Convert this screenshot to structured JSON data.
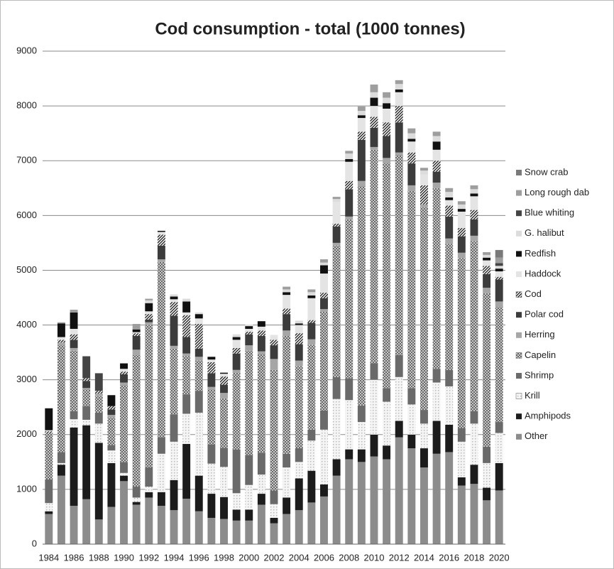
{
  "chart_data": {
    "type": "stacked_bar",
    "title": "Cod consumption - total (1000 tonnes)",
    "categories": [
      "1984",
      null,
      "1986",
      null,
      "1988",
      null,
      "1990",
      null,
      "1992",
      null,
      "1994",
      null,
      "1996",
      null,
      "1998",
      null,
      "2000",
      null,
      "2002",
      null,
      "2004",
      null,
      "2006",
      null,
      "2008",
      null,
      "2010",
      null,
      "2012",
      null,
      "2014",
      null,
      "2016",
      null,
      "2018",
      null,
      "2020"
    ],
    "ylim": [
      0,
      9000
    ],
    "yticks": [
      0,
      1000,
      2000,
      3000,
      4000,
      5000,
      6000,
      7000,
      8000,
      9000
    ],
    "grid": true,
    "legend": "right",
    "series": [
      {
        "name": "Other",
        "color": "#8c8c8c",
        "values": [
          550,
          1250,
          700,
          820,
          450,
          680,
          1150,
          720,
          850,
          700,
          620,
          830,
          600,
          480,
          460,
          430,
          430,
          720,
          380,
          550,
          620,
          760,
          870,
          1250,
          1550,
          1500,
          1600,
          1550,
          1950,
          1750,
          1400,
          1650,
          1680,
          1070,
          1100,
          800,
          980
        ]
      },
      {
        "name": "Amphipods",
        "color": "#1c1c1c",
        "values": [
          50,
          200,
          1430,
          1350,
          1400,
          800,
          100,
          50,
          100,
          250,
          550,
          1000,
          650,
          440,
          400,
          200,
          200,
          200,
          100,
          300,
          580,
          580,
          220,
          300,
          180,
          230,
          400,
          250,
          300,
          250,
          350,
          600,
          500,
          150,
          350,
          230,
          500
        ]
      },
      {
        "name": "Krill",
        "color": "#d8d8d8",
        "pattern": "dots",
        "values": [
          150,
          30,
          150,
          100,
          350,
          230,
          50,
          80,
          100,
          700,
          700,
          550,
          1150,
          550,
          550,
          300,
          450,
          350,
          250,
          550,
          300,
          550,
          1000,
          1100,
          900,
          500,
          1000,
          800,
          800,
          550,
          450,
          700,
          700,
          650,
          750,
          450,
          550
        ]
      },
      {
        "name": "Shrimp",
        "color": "#6a6a6a",
        "values": [
          430,
          200,
          150,
          250,
          200,
          100,
          200,
          200,
          350,
          300,
          500,
          350,
          400,
          350,
          350,
          800,
          550,
          400,
          250,
          250,
          250,
          200,
          350,
          400,
          400,
          300,
          300,
          250,
          400,
          300,
          250,
          250,
          300,
          250,
          230,
          300,
          200
        ]
      },
      {
        "name": "Capelin",
        "color": "#9a9a9a",
        "pattern": "crosshatch",
        "values": [
          850,
          1950,
          1100,
          300,
          300,
          500,
          1400,
          2400,
          2600,
          3200,
          1200,
          700,
          550,
          1000,
          900,
          1400,
          1900,
          1800,
          2200,
          2150,
          1500,
          1550,
          1800,
          2400,
          2900,
          4000,
          3900,
          4100,
          3650,
          3600,
          3700,
          3300,
          2300,
          3100,
          3100,
          2800,
          2100
        ]
      },
      {
        "name": "Herring",
        "color": "#a6a6a6",
        "values": [
          0,
          50,
          50,
          30,
          50,
          50,
          50,
          100,
          50,
          50,
          50,
          50,
          70,
          50,
          100,
          50,
          100,
          50,
          200,
          100,
          100,
          100,
          50,
          50,
          50,
          100,
          50,
          100,
          50,
          100,
          50,
          100,
          100,
          100,
          100,
          100,
          100
        ]
      },
      {
        "name": "Polar cod",
        "color": "#3c3c3c",
        "values": [
          0,
          0,
          150,
          130,
          0,
          100,
          150,
          250,
          50,
          250,
          550,
          300,
          150,
          250,
          150,
          300,
          200,
          280,
          250,
          300,
          300,
          300,
          200,
          300,
          500,
          750,
          350,
          400,
          550,
          400,
          0,
          200,
          400,
          300,
          300,
          250,
          400
        ]
      },
      {
        "name": "Cod",
        "color": "#222222",
        "pattern": "diagonal",
        "values": [
          30,
          50,
          100,
          50,
          50,
          60,
          50,
          50,
          100,
          200,
          250,
          400,
          450,
          200,
          150,
          100,
          50,
          100,
          100,
          100,
          200,
          50,
          100,
          50,
          150,
          150,
          200,
          250,
          300,
          200,
          350,
          200,
          200,
          150,
          170,
          150,
          50
        ]
      },
      {
        "name": "Haddock",
        "color": "#e4e4e4",
        "values": [
          20,
          50,
          100,
          0,
          0,
          0,
          50,
          20,
          50,
          50,
          50,
          50,
          100,
          50,
          50,
          150,
          50,
          70,
          90,
          250,
          150,
          400,
          350,
          400,
          350,
          250,
          200,
          250,
          250,
          200,
          200,
          200,
          100,
          300,
          250,
          100,
          100
        ]
      },
      {
        "name": "Redfish",
        "color": "#111111",
        "values": [
          400,
          250,
          300,
          0,
          0,
          200,
          100,
          50,
          150,
          20,
          50,
          200,
          80,
          50,
          20,
          50,
          50,
          100,
          0,
          50,
          30,
          50,
          150,
          0,
          50,
          50,
          150,
          100,
          50,
          50,
          0,
          150,
          50,
          50,
          50,
          50,
          50
        ]
      },
      {
        "name": "G. halibut",
        "color": "#dcdcdc",
        "values": [
          0,
          0,
          0,
          0,
          0,
          0,
          0,
          0,
          50,
          0,
          40,
          50,
          30,
          0,
          0,
          50,
          30,
          0,
          0,
          50,
          50,
          60,
          50,
          50,
          100,
          80,
          100,
          100,
          100,
          100,
          70,
          100,
          100,
          80,
          80,
          50,
          50
        ]
      },
      {
        "name": "Blue whiting",
        "color": "#444444",
        "values": [
          0,
          0,
          0,
          400,
          320,
          0,
          0,
          0,
          0,
          0,
          0,
          0,
          0,
          0,
          0,
          0,
          0,
          0,
          0,
          0,
          0,
          0,
          0,
          0,
          0,
          0,
          0,
          0,
          0,
          0,
          0,
          0,
          0,
          0,
          0,
          0,
          50
        ]
      },
      {
        "name": "Long rough dab",
        "color": "#9e9e9e",
        "values": [
          0,
          20,
          50,
          0,
          0,
          0,
          0,
          100,
          30,
          0,
          0,
          0,
          0,
          0,
          0,
          0,
          0,
          0,
          0,
          50,
          0,
          50,
          60,
          40,
          50,
          80,
          140,
          100,
          70,
          90,
          50,
          80,
          70,
          60,
          70,
          50,
          100
        ]
      },
      {
        "name": "Snow crab",
        "color": "#7a7a7a",
        "values": [
          0,
          0,
          0,
          0,
          0,
          0,
          0,
          0,
          0,
          0,
          0,
          0,
          0,
          0,
          0,
          0,
          0,
          0,
          0,
          0,
          0,
          0,
          0,
          0,
          0,
          0,
          0,
          0,
          0,
          0,
          0,
          0,
          0,
          0,
          0,
          0,
          140
        ]
      }
    ]
  }
}
